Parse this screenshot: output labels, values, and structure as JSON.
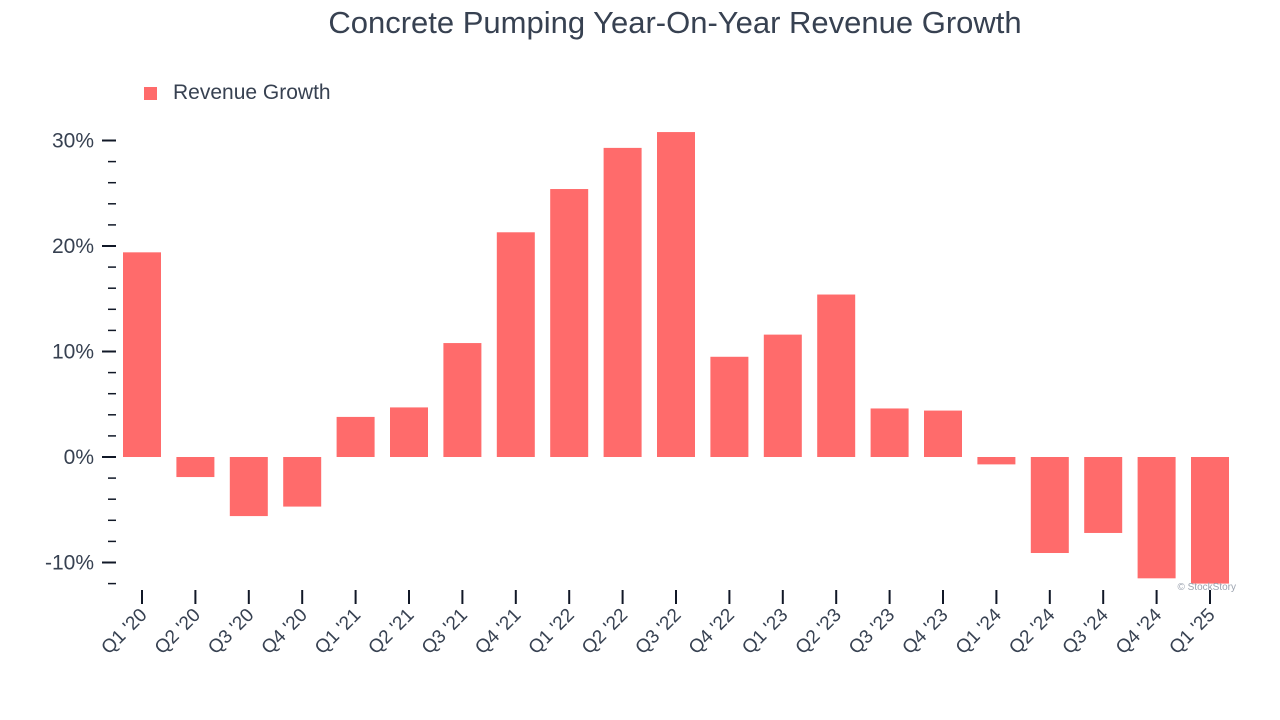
{
  "chart_data": {
    "type": "bar",
    "title": "Concrete Pumping Year-On-Year Revenue Growth",
    "xlabel": "",
    "ylabel": "",
    "ylim": [
      -12,
      30
    ],
    "yticks": [
      -10,
      0,
      10,
      20,
      30
    ],
    "ytick_labels": [
      "-10%",
      "0%",
      "10%",
      "20%",
      "30%"
    ],
    "grid": false,
    "legend_position": "top-left",
    "categories": [
      "Q1 '20",
      "Q2 '20",
      "Q3 '20",
      "Q4 '20",
      "Q1 '21",
      "Q2 '21",
      "Q3 '21",
      "Q4 '21",
      "Q1 '22",
      "Q2 '22",
      "Q3 '22",
      "Q4 '22",
      "Q1 '23",
      "Q2 '23",
      "Q3 '23",
      "Q4 '23",
      "Q1 '24",
      "Q2 '24",
      "Q3 '24",
      "Q4 '24",
      "Q1 '25"
    ],
    "series": [
      {
        "name": "Revenue Growth",
        "color": "#ff6b6b",
        "values": [
          19.4,
          -1.9,
          -5.6,
          -4.7,
          3.8,
          4.7,
          10.8,
          21.3,
          25.4,
          29.3,
          30.8,
          9.5,
          11.6,
          15.4,
          4.6,
          4.4,
          -0.7,
          -9.1,
          -7.2,
          -11.5,
          -12.0
        ]
      }
    ],
    "watermark": "© StockStory"
  }
}
